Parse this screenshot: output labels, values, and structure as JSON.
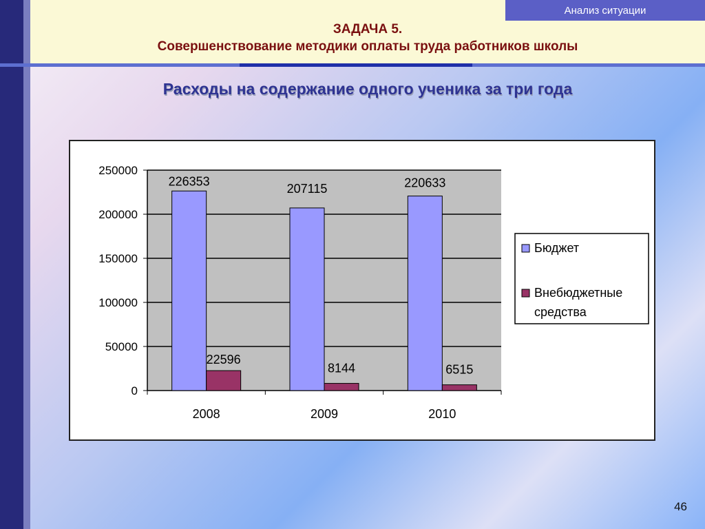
{
  "header": {
    "tag": "Анализ ситуации",
    "task": "ЗАДАЧА 5.",
    "subtitle": "Совершенствование методики оплаты труда работников школы"
  },
  "heading": "Расходы на содержание одного ученика за три года",
  "page_number": "46",
  "colors": {
    "budget": "#9999ff",
    "extrabudget": "#993366",
    "plot_bg": "#c0c0c0"
  },
  "chart_data": {
    "type": "bar",
    "categories": [
      "2008",
      "2009",
      "2010"
    ],
    "series": [
      {
        "name": "Бюджет",
        "values": [
          226353,
          207115,
          220633
        ]
      },
      {
        "name": "Внебюджетные средства",
        "values": [
          22596,
          8144,
          6515
        ]
      }
    ],
    "ylim": [
      0,
      250000
    ],
    "yticks": [
      "0",
      "50000",
      "100000",
      "150000",
      "200000",
      "250000"
    ],
    "grid": true,
    "legend": "right",
    "legend_labels": [
      "Бюджет",
      "Внебюджетные",
      "средства"
    ]
  }
}
